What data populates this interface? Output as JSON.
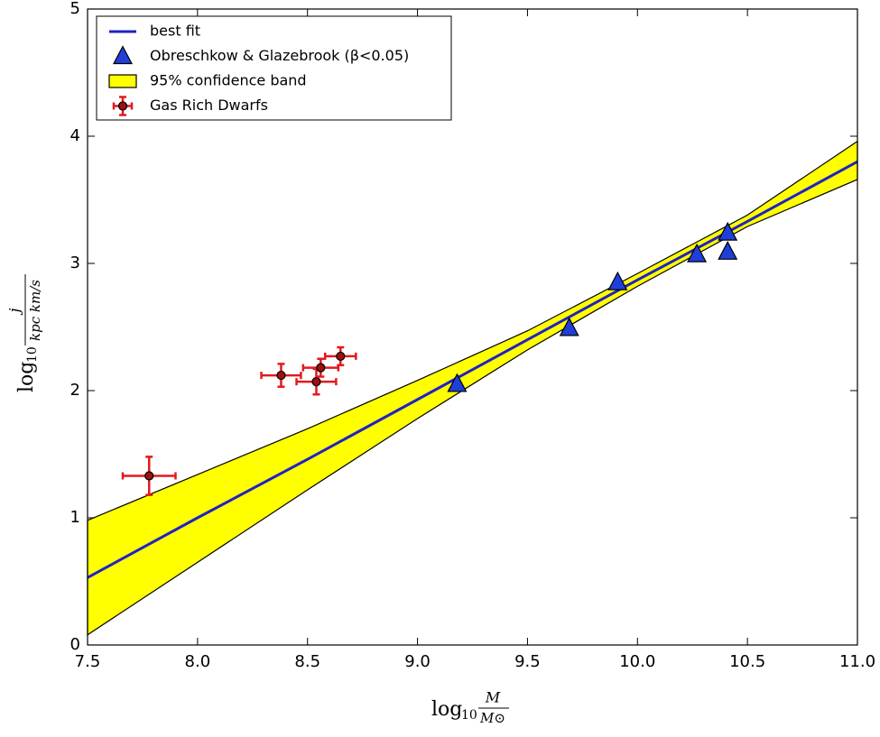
{
  "chart_data": {
    "type": "scatter",
    "xlabel": {
      "text": "log",
      "sub": "10",
      "num": "M",
      "den": "M⊙"
    },
    "ylabel": {
      "text": "log",
      "sub": "10",
      "num": "j",
      "den": "kpc km/s"
    },
    "xlim": [
      7.5,
      11.0
    ],
    "ylim": [
      0,
      5
    ],
    "xticks": [
      7.5,
      {
        "value": 8,
        "label": "8.0"
      },
      8.5,
      {
        "value": 9,
        "label": "9.0"
      },
      9.5,
      {
        "value": 10,
        "label": "10.0"
      },
      10.5,
      {
        "value": 11,
        "label": "11.0"
      }
    ],
    "yticks": [
      0,
      1,
      2,
      3,
      4,
      5
    ],
    "legend": "upper left",
    "series": [
      {
        "name": "best fit",
        "kind": "line",
        "color": "#2121c4",
        "x": [
          7.5,
          8.0,
          8.5,
          9.0,
          9.5,
          10.0,
          10.5,
          11.0
        ],
        "values": [
          0.53,
          1.0,
          1.46,
          1.93,
          2.4,
          2.87,
          3.33,
          3.8
        ]
      },
      {
        "name": "Obreschkow & Glazebrook (β<0.05)",
        "kind": "triangles",
        "color": "#1f3fd8",
        "x": [
          9.18,
          9.69,
          9.91,
          10.27,
          10.41,
          10.41
        ],
        "values": [
          2.05,
          2.49,
          2.85,
          3.07,
          3.24,
          3.09
        ]
      },
      {
        "name": "95% confidence band",
        "kind": "band",
        "color": "#ffff00",
        "edge_color": "#000000",
        "x": [
          7.5,
          8.0,
          8.5,
          9.0,
          9.5,
          10.0,
          10.5,
          11.0
        ],
        "upper": [
          0.98,
          1.34,
          1.7,
          2.08,
          2.47,
          2.92,
          3.38,
          3.96
        ],
        "lower": [
          0.08,
          0.65,
          1.22,
          1.78,
          2.32,
          2.82,
          3.29,
          3.66
        ]
      },
      {
        "name": "Gas Rich Dwarfs",
        "kind": "errorbar",
        "color": "#e31a1c",
        "marker_color": "#9b1111",
        "x": [
          7.78,
          8.38,
          8.54,
          8.56,
          8.65
        ],
        "values": [
          1.33,
          2.12,
          2.07,
          2.18,
          2.27
        ],
        "xerr": [
          0.12,
          0.09,
          0.09,
          0.08,
          0.07
        ],
        "yerr": [
          0.15,
          0.09,
          0.1,
          0.07,
          0.07
        ]
      }
    ]
  }
}
